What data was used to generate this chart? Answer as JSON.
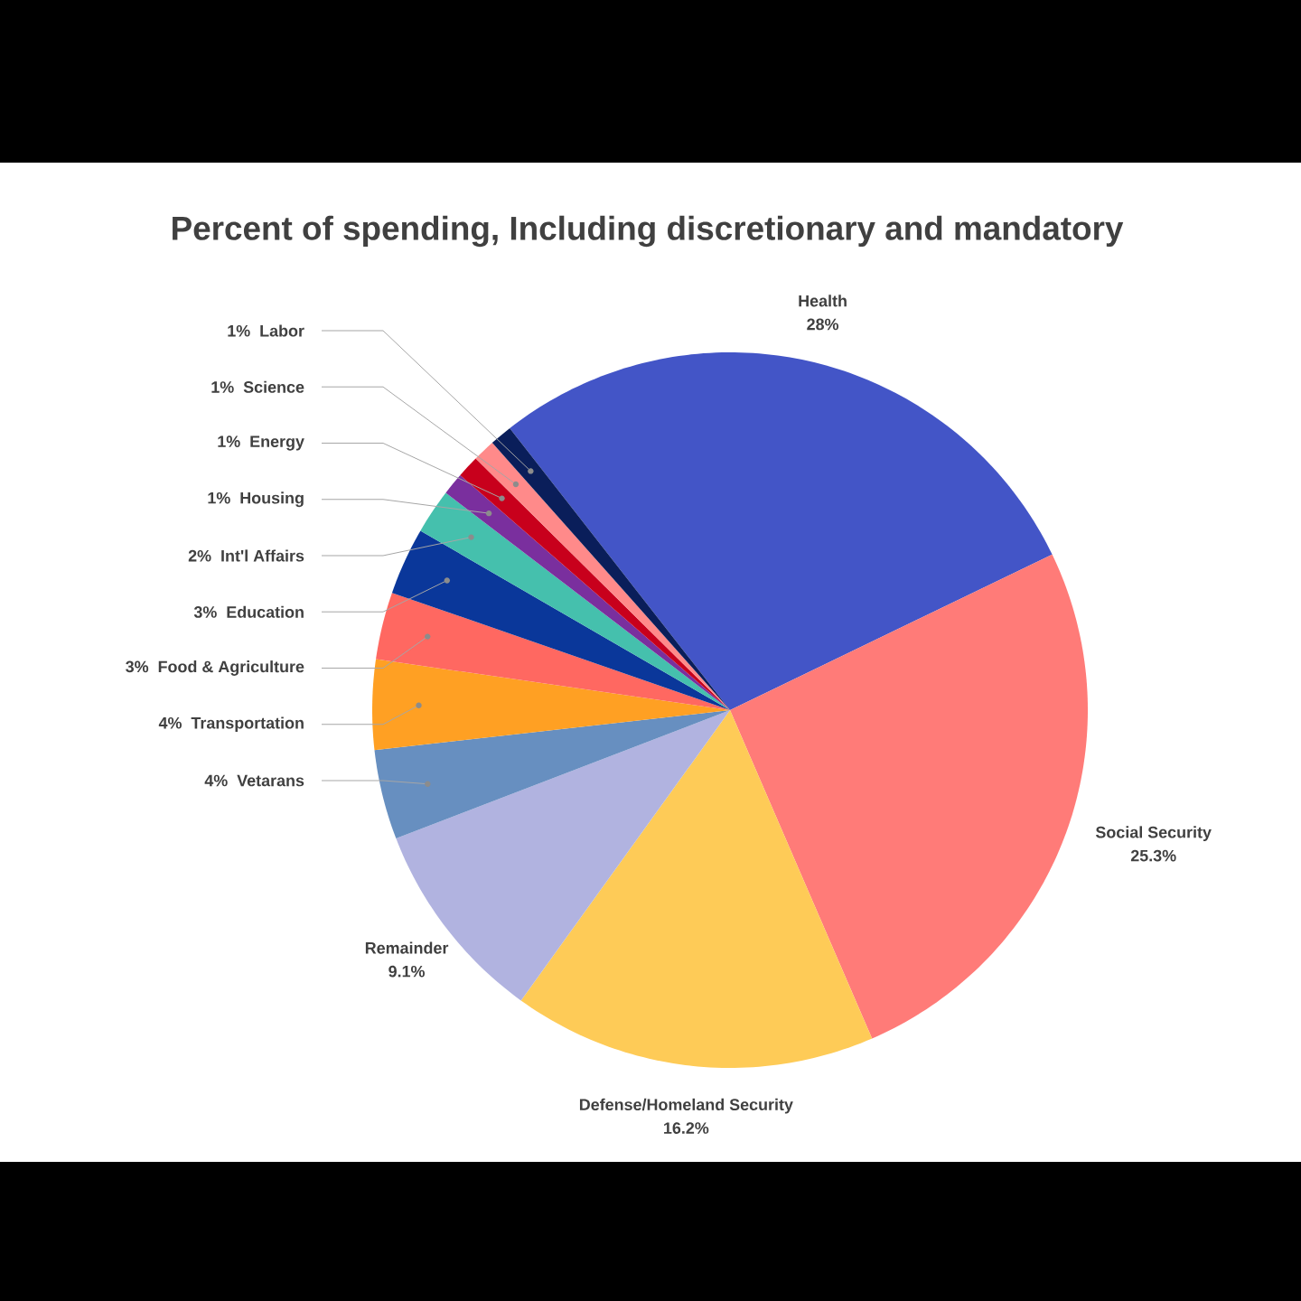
{
  "chart_data": {
    "type": "pie",
    "title": "Percent of spending, Including discretionary and mandatory",
    "categories": [
      "Health",
      "Social Security",
      "Defense/Homeland Security",
      "Remainder",
      "Vetarans",
      "Transportation",
      "Food & Agriculture",
      "Education",
      "Int'l Affairs",
      "Housing",
      "Energy",
      "Science",
      "Labor"
    ],
    "values": [
      28,
      25.3,
      16.2,
      9.1,
      4,
      4,
      3,
      3,
      2,
      1,
      1,
      1,
      1
    ],
    "value_labels": [
      "28%",
      "25.3%",
      "16.2%",
      "9.1%",
      "4%",
      "4%",
      "3%",
      "3%",
      "2%",
      "1%",
      "1%",
      "1%",
      "1%"
    ],
    "colors": [
      "#4355c7",
      "#ff7b78",
      "#fecb57",
      "#b1b3e0",
      "#678fc0",
      "#ffa023",
      "#ff6861",
      "#0a379a",
      "#45c0ad",
      "#7a2f9e",
      "#c8001c",
      "#ff8a8a",
      "#0a1e5a"
    ]
  }
}
